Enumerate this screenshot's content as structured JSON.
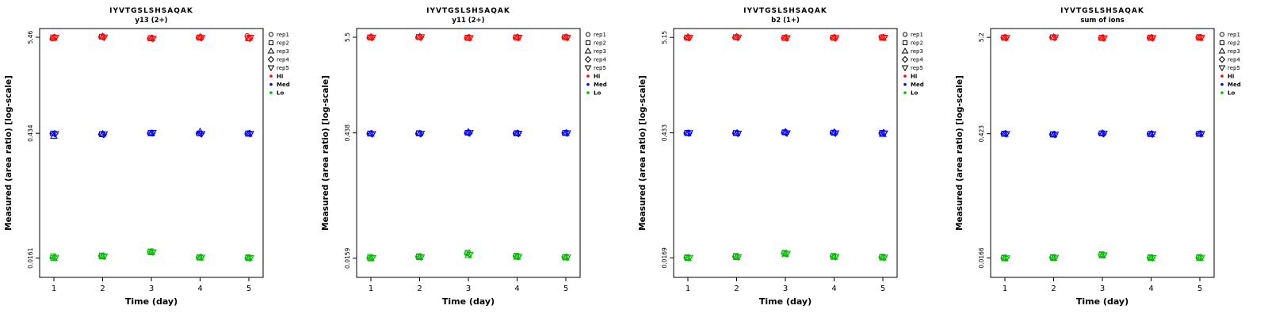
{
  "figure": {
    "peptide": "IYVTGSLSHSAQAK",
    "x_axis_label": "Time (day)",
    "y_axis_label": "Measured (area ratio) [log-scale]",
    "colors": {
      "hi": "#FF0000",
      "med": "#0000FF",
      "lo": "#00BB00",
      "axis": "#000000"
    },
    "legend": {
      "reps": [
        {
          "label": "rep1",
          "marker": "circle"
        },
        {
          "label": "rep2",
          "marker": "square"
        },
        {
          "label": "rep3",
          "marker": "triangle-up"
        },
        {
          "label": "rep4",
          "marker": "diamond"
        },
        {
          "label": "rep5",
          "marker": "triangle-down"
        }
      ],
      "levels": [
        {
          "label": "Hi",
          "color": "#FF0000"
        },
        {
          "label": "Med",
          "color": "#0000FF"
        },
        {
          "label": "Lo",
          "color": "#00BB00"
        }
      ]
    }
  },
  "chart_data": [
    {
      "type": "scatter",
      "title": "IYVTGSLSHSAQAK",
      "subtitle": "y13 (2+)",
      "xlabel": "Time (day)",
      "ylabel": "Measured (area ratio) [log-scale]",
      "x": [
        1,
        2,
        3,
        4,
        5
      ],
      "x_ticks": [
        "1",
        "2",
        "3",
        "4",
        "5"
      ],
      "y_ticks": [
        5.46,
        0.434,
        0.0161
      ],
      "y_tick_labels": [
        "5.46",
        "0.434",
        "0.0161"
      ],
      "y_scale": "log",
      "series": [
        {
          "name": "Hi",
          "color": "#FF0000",
          "values_by_day": [
            [
              5.25,
              5.45,
              5.4,
              5.45,
              5.42
            ],
            [
              5.5,
              5.55,
              5.6,
              5.5,
              5.45
            ],
            [
              5.3,
              5.35,
              5.3,
              5.32,
              5.28
            ],
            [
              5.4,
              5.45,
              5.5,
              5.42,
              5.38
            ],
            [
              5.65,
              5.3,
              5.35,
              5.3,
              5.4
            ]
          ]
        },
        {
          "name": "Med",
          "color": "#0000FF",
          "values_by_day": [
            [
              0.43,
              0.432,
              0.405,
              0.43,
              0.428
            ],
            [
              0.422,
              0.425,
              0.428,
              0.42,
              0.424
            ],
            [
              0.434,
              0.438,
              0.432,
              0.436,
              0.44
            ],
            [
              0.43,
              0.432,
              0.455,
              0.43,
              0.428
            ],
            [
              0.43,
              0.434,
              0.428,
              0.432,
              0.43
            ]
          ]
        },
        {
          "name": "Lo",
          "color": "#00BB00",
          "values_by_day": [
            [
              0.0163,
              0.017,
              0.0162,
              0.0164,
              0.0163
            ],
            [
              0.017,
              0.0173,
              0.0168,
              0.0171,
              0.0169
            ],
            [
              0.019,
              0.0193,
              0.0188,
              0.0191,
              0.0189
            ],
            [
              0.0164,
              0.0166,
              0.0163,
              0.0165,
              0.0164
            ],
            [
              0.0162,
              0.0165,
              0.0161,
              0.0163,
              0.0162
            ]
          ]
        }
      ]
    },
    {
      "type": "scatter",
      "title": "IYVTGSLSHSAQAK",
      "subtitle": "y11 (2+)",
      "xlabel": "Time (day)",
      "ylabel": "Measured (area ratio) [log-scale]",
      "x": [
        1,
        2,
        3,
        4,
        5
      ],
      "x_ticks": [
        "1",
        "2",
        "3",
        "4",
        "5"
      ],
      "y_ticks": [
        5.5,
        0.438,
        0.0159
      ],
      "y_tick_labels": [
        "5.5",
        "0.438",
        "0.0159"
      ],
      "y_scale": "log",
      "series": [
        {
          "name": "Hi",
          "color": "#FF0000",
          "values_by_day": [
            [
              5.45,
              5.5,
              5.55,
              5.48,
              5.46
            ],
            [
              5.5,
              5.55,
              5.6,
              5.5,
              5.52
            ],
            [
              5.4,
              5.45,
              5.42,
              5.44,
              5.4
            ],
            [
              5.45,
              5.5,
              5.48,
              5.46,
              5.44
            ],
            [
              5.5,
              5.52,
              5.48,
              5.5,
              5.46
            ]
          ]
        },
        {
          "name": "Med",
          "color": "#0000FF",
          "values_by_day": [
            [
              0.43,
              0.432,
              0.428,
              0.43,
              0.426
            ],
            [
              0.43,
              0.435,
              0.432,
              0.428,
              0.43
            ],
            [
              0.438,
              0.44,
              0.45,
              0.436,
              0.438
            ],
            [
              0.432,
              0.435,
              0.43,
              0.434,
              0.43
            ],
            [
              0.436,
              0.438,
              0.435,
              0.437,
              0.436
            ]
          ]
        },
        {
          "name": "Lo",
          "color": "#00BB00",
          "values_by_day": [
            [
              0.016,
              0.0165,
              0.0158,
              0.0162,
              0.016
            ],
            [
              0.0165,
              0.0168,
              0.0163,
              0.0166,
              0.0164
            ],
            [
              0.018,
              0.0185,
              0.0172,
              0.0178,
              0.0175
            ],
            [
              0.0168,
              0.017,
              0.0165,
              0.0167,
              0.0166
            ],
            [
              0.0163,
              0.0165,
              0.0162,
              0.0164,
              0.0163
            ]
          ]
        }
      ]
    },
    {
      "type": "scatter",
      "title": "IYVTGSLSHSAQAK",
      "subtitle": "b2 (1+)",
      "xlabel": "Time (day)",
      "ylabel": "Measured (area ratio) [log-scale]",
      "x": [
        1,
        2,
        3,
        4,
        5
      ],
      "x_ticks": [
        "1",
        "2",
        "3",
        "4",
        "5"
      ],
      "y_ticks": [
        5.15,
        0.433,
        0.0169
      ],
      "y_tick_labels": [
        "5.15",
        "0.433",
        "0.0169"
      ],
      "y_scale": "log",
      "series": [
        {
          "name": "Hi",
          "color": "#FF0000",
          "values_by_day": [
            [
              5.1,
              5.15,
              5.2,
              5.12,
              5.1
            ],
            [
              5.15,
              5.2,
              5.25,
              5.16,
              5.14
            ],
            [
              5.05,
              5.1,
              5.08,
              5.12,
              5.06
            ],
            [
              5.1,
              5.12,
              5.15,
              5.1,
              5.08
            ],
            [
              5.2,
              5.15,
              5.1,
              5.18,
              5.12
            ]
          ]
        },
        {
          "name": "Med",
          "color": "#0000FF",
          "values_by_day": [
            [
              0.43,
              0.433,
              0.428,
              0.43,
              0.432
            ],
            [
              0.43,
              0.432,
              0.428,
              0.43,
              0.426
            ],
            [
              0.436,
              0.44,
              0.445,
              0.434,
              0.43
            ],
            [
              0.433,
              0.436,
              0.44,
              0.432,
              0.43
            ],
            [
              0.43,
              0.433,
              0.42,
              0.436,
              0.428
            ]
          ]
        },
        {
          "name": "Lo",
          "color": "#00BB00",
          "values_by_day": [
            [
              0.017,
              0.0172,
              0.0168,
              0.017,
              0.0169
            ],
            [
              0.0175,
              0.0178,
              0.0172,
              0.0174,
              0.0173
            ],
            [
              0.019,
              0.0193,
              0.0186,
              0.019,
              0.0188
            ],
            [
              0.0176,
              0.0178,
              0.0173,
              0.0175,
              0.0174
            ],
            [
              0.0172,
              0.0174,
              0.017,
              0.0172,
              0.0171
            ]
          ]
        }
      ]
    },
    {
      "type": "scatter",
      "title": "IYVTGSLSHSAQAK",
      "subtitle": "sum of ions",
      "xlabel": "Time (day)",
      "ylabel": "Measured (area ratio) [log-scale]",
      "x": [
        1,
        2,
        3,
        4,
        5
      ],
      "x_ticks": [
        "1",
        "2",
        "3",
        "4",
        "5"
      ],
      "y_ticks": [
        5.2,
        0.423,
        0.0166
      ],
      "y_tick_labels": [
        "5.2",
        "0.423",
        "0.0166"
      ],
      "y_scale": "log",
      "series": [
        {
          "name": "Hi",
          "color": "#FF0000",
          "values_by_day": [
            [
              5.15,
              5.2,
              5.18,
              5.16,
              5.14
            ],
            [
              5.2,
              5.22,
              5.25,
              5.18,
              5.2
            ],
            [
              5.1,
              5.15,
              5.12,
              5.14,
              5.1
            ],
            [
              5.15,
              5.18,
              5.14,
              5.16,
              5.12
            ],
            [
              5.2,
              5.25,
              5.15,
              5.2,
              5.18
            ]
          ]
        },
        {
          "name": "Med",
          "color": "#0000FF",
          "values_by_day": [
            [
              0.422,
              0.424,
              0.42,
              0.423,
              0.421
            ],
            [
              0.415,
              0.418,
              0.412,
              0.416,
              0.414
            ],
            [
              0.424,
              0.427,
              0.43,
              0.423,
              0.425
            ],
            [
              0.42,
              0.422,
              0.418,
              0.421,
              0.419
            ],
            [
              0.422,
              0.424,
              0.42,
              0.423,
              0.421
            ]
          ]
        },
        {
          "name": "Lo",
          "color": "#00BB00",
          "values_by_day": [
            [
              0.0166,
              0.0168,
              0.0164,
              0.0166,
              0.0165
            ],
            [
              0.0168,
              0.017,
              0.0166,
              0.0168,
              0.0167
            ],
            [
              0.018,
              0.0183,
              0.0177,
              0.018,
              0.0179
            ],
            [
              0.0167,
              0.0169,
              0.0165,
              0.0167,
              0.0166
            ],
            [
              0.0168,
              0.017,
              0.0166,
              0.0168,
              0.0167
            ]
          ]
        }
      ]
    }
  ]
}
